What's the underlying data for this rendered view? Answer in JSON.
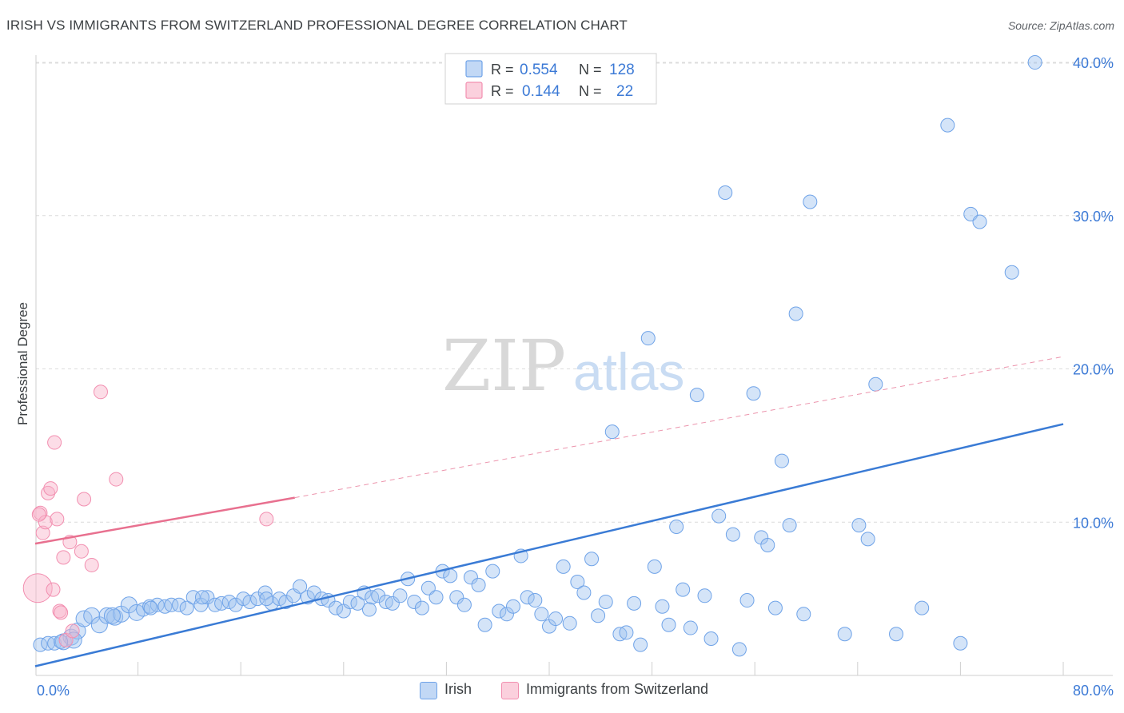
{
  "title": "IRISH VS IMMIGRANTS FROM SWITZERLAND PROFESSIONAL DEGREE CORRELATION CHART",
  "source": "Source: ZipAtlas.com",
  "watermark": {
    "zip": "ZIP",
    "atlas": "atlas"
  },
  "stats": [
    {
      "r_label": "R =",
      "r_value": "0.554",
      "n_label": "N =",
      "n_value": "128",
      "color": "#6fa3e8"
    },
    {
      "r_label": "R =",
      "r_value": "0.144",
      "n_label": "N =",
      "n_value": "22",
      "color": "#f28fb0"
    }
  ],
  "chart_data": {
    "type": "scatter",
    "xlabel": "",
    "ylabel": "Professional Degree",
    "xlim": [
      0,
      80
    ],
    "ylim": [
      0,
      41
    ],
    "x_tick_labels": [
      "0.0%",
      "80.0%"
    ],
    "y_ticks": [
      10,
      20,
      30,
      40
    ],
    "y_tick_labels": [
      "10.0%",
      "20.0%",
      "30.0%",
      "40.0%"
    ],
    "grid": true,
    "legend_position": "bottom-center",
    "series": [
      {
        "name": "Irish",
        "color": "#6fa3e8",
        "trend": {
          "x": [
            0,
            80
          ],
          "y": [
            0.6,
            16.4
          ],
          "style": "solid"
        },
        "points": [
          [
            0.4,
            2.0
          ],
          [
            1.0,
            2.1
          ],
          [
            1.5,
            2.1
          ],
          [
            2.2,
            2.2
          ],
          [
            2.8,
            2.5
          ],
          [
            3.3,
            2.9
          ],
          [
            3.8,
            3.7
          ],
          [
            4.4,
            3.9
          ],
          [
            5.0,
            3.3
          ],
          [
            5.6,
            3.9
          ],
          [
            6.2,
            3.8
          ],
          [
            6.7,
            4.0
          ],
          [
            7.3,
            4.6
          ],
          [
            7.9,
            4.1
          ],
          [
            8.4,
            4.3
          ],
          [
            8.9,
            4.5
          ],
          [
            9.5,
            4.6
          ],
          [
            10.1,
            4.5
          ],
          [
            10.6,
            4.6
          ],
          [
            11.2,
            4.6
          ],
          [
            11.8,
            4.4
          ],
          [
            12.3,
            5.1
          ],
          [
            12.9,
            4.6
          ],
          [
            13.4,
            5.1
          ],
          [
            14.0,
            4.6
          ],
          [
            14.5,
            4.7
          ],
          [
            15.1,
            4.8
          ],
          [
            15.6,
            4.6
          ],
          [
            16.2,
            5.0
          ],
          [
            16.7,
            4.8
          ],
          [
            17.3,
            5.0
          ],
          [
            17.9,
            5.4
          ],
          [
            18.4,
            4.7
          ],
          [
            19.0,
            5.0
          ],
          [
            19.5,
            4.8
          ],
          [
            20.1,
            5.2
          ],
          [
            20.6,
            5.8
          ],
          [
            21.2,
            5.1
          ],
          [
            21.7,
            5.4
          ],
          [
            22.3,
            5.0
          ],
          [
            22.8,
            4.9
          ],
          [
            23.4,
            4.4
          ],
          [
            24.0,
            4.2
          ],
          [
            24.5,
            4.8
          ],
          [
            25.1,
            4.7
          ],
          [
            25.6,
            5.4
          ],
          [
            26.2,
            5.1
          ],
          [
            26.7,
            5.2
          ],
          [
            27.3,
            4.8
          ],
          [
            27.8,
            4.7
          ],
          [
            28.4,
            5.2
          ],
          [
            29.0,
            6.3
          ],
          [
            29.5,
            4.8
          ],
          [
            30.1,
            4.4
          ],
          [
            30.6,
            5.7
          ],
          [
            31.2,
            5.1
          ],
          [
            31.7,
            6.8
          ],
          [
            32.3,
            6.5
          ],
          [
            32.8,
            5.1
          ],
          [
            33.4,
            4.6
          ],
          [
            33.9,
            6.4
          ],
          [
            34.5,
            5.9
          ],
          [
            35.0,
            3.3
          ],
          [
            35.6,
            6.8
          ],
          [
            36.1,
            4.2
          ],
          [
            36.7,
            4.0
          ],
          [
            37.2,
            4.5
          ],
          [
            37.8,
            7.8
          ],
          [
            38.3,
            5.1
          ],
          [
            38.9,
            4.9
          ],
          [
            39.4,
            4.0
          ],
          [
            40.0,
            3.2
          ],
          [
            40.5,
            3.7
          ],
          [
            41.1,
            7.1
          ],
          [
            41.6,
            3.4
          ],
          [
            42.2,
            6.1
          ],
          [
            42.7,
            5.4
          ],
          [
            43.3,
            7.6
          ],
          [
            43.8,
            3.9
          ],
          [
            44.4,
            4.8
          ],
          [
            44.9,
            15.9
          ],
          [
            45.5,
            2.7
          ],
          [
            46.0,
            2.8
          ],
          [
            46.6,
            4.7
          ],
          [
            47.1,
            2.0
          ],
          [
            47.7,
            22.0
          ],
          [
            48.2,
            7.1
          ],
          [
            48.8,
            4.5
          ],
          [
            49.3,
            3.3
          ],
          [
            49.9,
            9.7
          ],
          [
            50.4,
            5.6
          ],
          [
            51.0,
            3.1
          ],
          [
            51.5,
            18.3
          ],
          [
            52.1,
            5.2
          ],
          [
            52.6,
            2.4
          ],
          [
            53.2,
            10.4
          ],
          [
            53.7,
            31.5
          ],
          [
            54.3,
            9.2
          ],
          [
            54.8,
            1.7
          ],
          [
            55.4,
            4.9
          ],
          [
            55.9,
            18.4
          ],
          [
            56.5,
            9.0
          ],
          [
            57.0,
            8.5
          ],
          [
            57.6,
            4.4
          ],
          [
            58.1,
            14.0
          ],
          [
            58.7,
            9.8
          ],
          [
            59.2,
            23.6
          ],
          [
            59.8,
            4.0
          ],
          [
            60.3,
            30.9
          ],
          [
            63.0,
            2.7
          ],
          [
            64.1,
            9.8
          ],
          [
            64.8,
            8.9
          ],
          [
            65.4,
            19.0
          ],
          [
            67.0,
            2.7
          ],
          [
            69.0,
            4.4
          ],
          [
            72.0,
            2.1
          ],
          [
            72.8,
            30.1
          ],
          [
            73.5,
            29.6
          ],
          [
            76.0,
            26.3
          ],
          [
            71.0,
            35.9
          ],
          [
            77.8,
            40.0
          ],
          [
            26.0,
            4.3
          ],
          [
            13.0,
            5.1
          ],
          [
            18.0,
            5.0
          ],
          [
            9.0,
            4.4
          ],
          [
            6.0,
            3.9
          ],
          [
            3.0,
            2.3
          ],
          [
            2.0,
            2.2
          ]
        ]
      },
      {
        "name": "Immigrants from Switzerland",
        "color": "#f28fb0",
        "trend": {
          "x": [
            0,
            20.2
          ],
          "y": [
            8.6,
            11.6
          ],
          "style": "solid",
          "dashed_extension_to": [
            80,
            20.8
          ]
        },
        "points": [
          [
            0.2,
            5.7
          ],
          [
            0.4,
            10.6
          ],
          [
            0.6,
            9.3
          ],
          [
            0.8,
            10.0
          ],
          [
            1.0,
            11.9
          ],
          [
            1.2,
            12.2
          ],
          [
            1.4,
            5.6
          ],
          [
            1.5,
            15.2
          ],
          [
            1.7,
            10.2
          ],
          [
            1.9,
            4.2
          ],
          [
            2.0,
            4.1
          ],
          [
            2.2,
            7.7
          ],
          [
            2.4,
            2.3
          ],
          [
            2.7,
            8.7
          ],
          [
            2.9,
            2.9
          ],
          [
            3.6,
            8.1
          ],
          [
            3.8,
            11.5
          ],
          [
            4.4,
            7.2
          ],
          [
            5.1,
            18.5
          ],
          [
            6.3,
            12.8
          ],
          [
            18.0,
            10.2
          ],
          [
            0.3,
            10.5
          ]
        ]
      }
    ]
  }
}
